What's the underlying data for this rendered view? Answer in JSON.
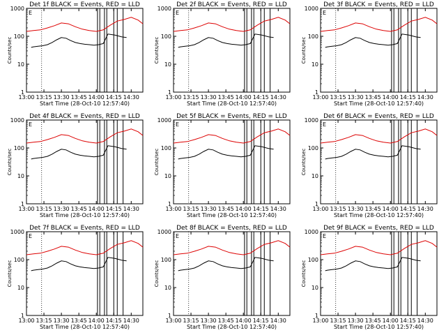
{
  "chart_data": [
    {
      "title": "Det 1f BLACK = Events, RED = LLD",
      "type": "line"
    },
    {
      "title": "Det 2f BLACK = Events, RED = LLD",
      "type": "line"
    },
    {
      "title": "Det 3f BLACK = Events, RED = LLD",
      "type": "line"
    },
    {
      "title": "Det 4f BLACK = Events, RED = LLD",
      "type": "line"
    },
    {
      "title": "Det 5f BLACK = Events, RED = LLD",
      "type": "line"
    },
    {
      "title": "Det 6f BLACK = Events, RED = LLD",
      "type": "line"
    },
    {
      "title": "Det 7f BLACK = Events, RED = LLD",
      "type": "line"
    },
    {
      "title": "Det 8f BLACK = Events, RED = LLD",
      "type": "line"
    },
    {
      "title": "Det 9f BLACK = Events, RED = LLD",
      "type": "line"
    }
  ],
  "common": {
    "type": "line",
    "ylabel": "Counts/sec",
    "xlabel": "Start Time (28-Oct-10 12:57:40)",
    "yscale": "log",
    "ylim": [
      1,
      1000
    ],
    "yticks": [
      1,
      10,
      100,
      1000
    ],
    "ytick_labels": [
      "1",
      "10",
      "100",
      "1000"
    ],
    "xlim_minutes": [
      780,
      880
    ],
    "xticks_minutes": [
      780,
      795,
      810,
      825,
      840,
      855,
      870
    ],
    "xtick_labels": [
      "13:00",
      "13:15",
      "13:30",
      "13:45",
      "14:00",
      "14:15",
      "14:30"
    ],
    "dotted_line_minute": 793,
    "series_colors": {
      "events": "#000000",
      "lld": "#dd0000"
    },
    "e_marker": "E",
    "series": [
      {
        "key": "events",
        "x_minutes": [
          784,
          786,
          790,
          794,
          798,
          802,
          806,
          810,
          814,
          818,
          822,
          826,
          830,
          834,
          838,
          842,
          846,
          850,
          856,
          862,
          866
        ],
        "values": [
          40,
          42,
          44,
          46,
          50,
          60,
          75,
          90,
          85,
          70,
          60,
          55,
          52,
          50,
          48,
          50,
          55,
          120,
          110,
          95,
          90
        ]
      },
      {
        "key": "lld",
        "x_minutes": [
          780,
          786,
          792,
          798,
          804,
          810,
          816,
          822,
          828,
          834,
          840,
          846,
          852,
          858,
          864,
          870,
          876,
          880
        ],
        "values": [
          150,
          160,
          170,
          200,
          240,
          300,
          280,
          220,
          180,
          160,
          150,
          170,
          250,
          350,
          400,
          480,
          380,
          280
        ]
      }
    ],
    "vertical_bars_minutes": [
      841,
      843,
      847,
      849,
      855,
      858,
      863
    ]
  }
}
